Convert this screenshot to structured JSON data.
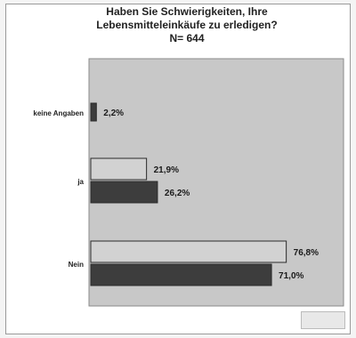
{
  "chart_data": {
    "type": "bar",
    "orientation": "horizontal",
    "title_lines": [
      "Haben Sie Schwierigkeiten,  Ihre",
      "Lebensmitteleinkäufe  zu erledigen?",
      "N= 644"
    ],
    "categories": [
      "keine Angaben",
      "ja",
      "Nein"
    ],
    "series": [
      {
        "values": [
          null,
          21.9,
          76.8
        ],
        "labels": [
          "",
          "21,9%",
          "76,8%"
        ]
      },
      {
        "values": [
          2.2,
          26.2,
          71.0
        ],
        "labels": [
          "2,2%",
          "26,2%",
          "71,0%"
        ]
      }
    ],
    "xlim": [
      0,
      100
    ],
    "legend_position": "bottom",
    "colors": {
      "plot_bg": "#c8c8c8",
      "series_1": "#d2d2d2",
      "series_2": "#3d3d3d"
    }
  }
}
